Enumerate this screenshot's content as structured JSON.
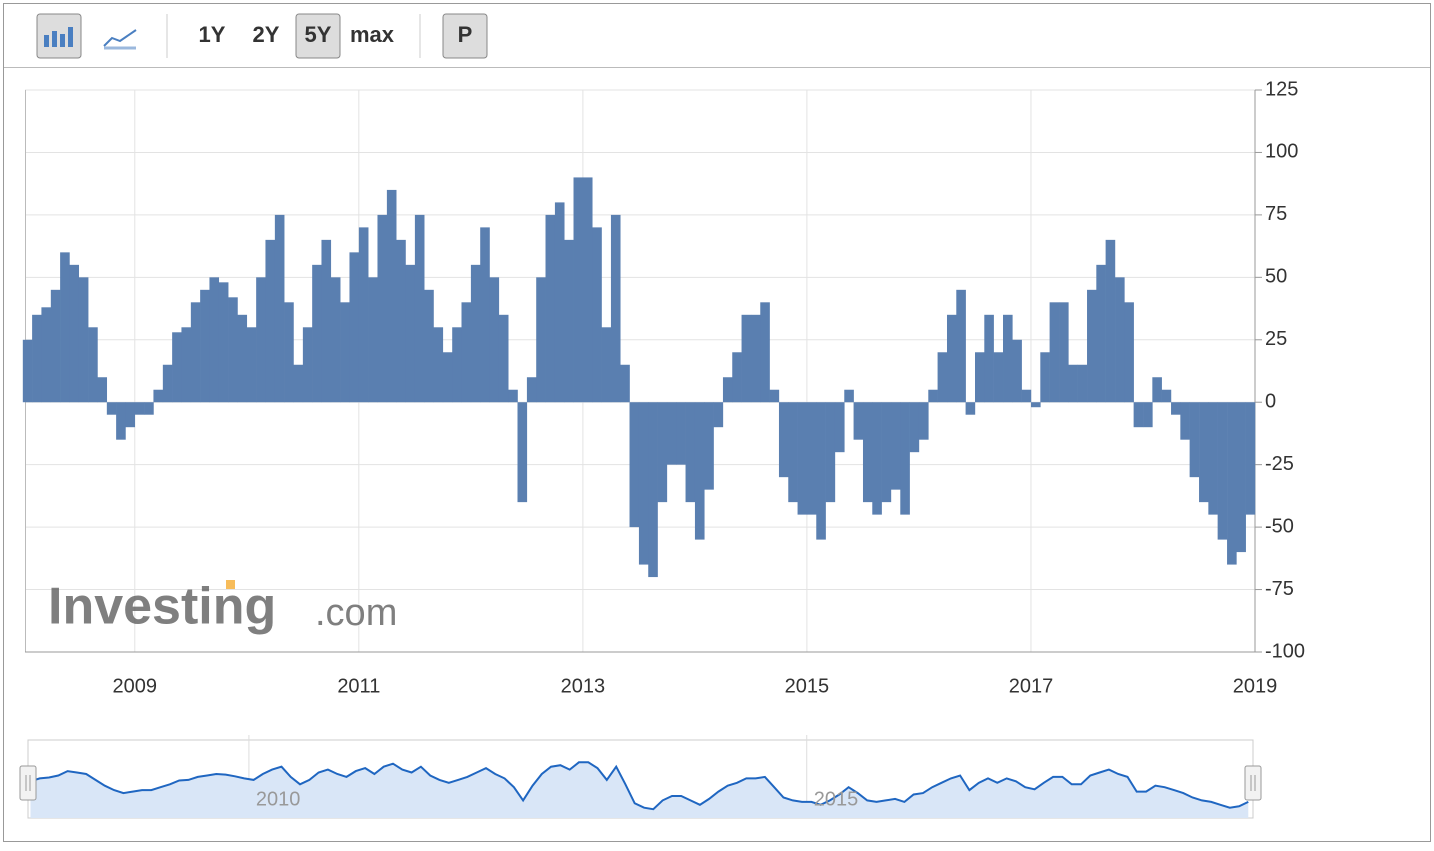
{
  "toolbar": {
    "ranges": [
      "1Y",
      "2Y",
      "5Y",
      "max"
    ],
    "active_range": 2,
    "print": "P"
  },
  "watermark": {
    "brand": "Investing",
    "suffix": ".com"
  },
  "chart_data": {
    "type": "bar",
    "color": "#5a7fb0",
    "grid": true,
    "x": [
      2008.042,
      2008.125,
      2008.208,
      2008.292,
      2008.375,
      2008.458,
      2008.542,
      2008.625,
      2008.708,
      2008.792,
      2008.875,
      2008.958,
      2009.042,
      2009.125,
      2009.208,
      2009.292,
      2009.375,
      2009.458,
      2009.542,
      2009.625,
      2009.708,
      2009.792,
      2009.875,
      2009.958,
      2010.042,
      2010.125,
      2010.208,
      2010.292,
      2010.375,
      2010.458,
      2010.542,
      2010.625,
      2010.708,
      2010.792,
      2010.875,
      2010.958,
      2011.042,
      2011.125,
      2011.208,
      2011.292,
      2011.375,
      2011.458,
      2011.542,
      2011.625,
      2011.708,
      2011.792,
      2011.875,
      2011.958,
      2012.042,
      2012.125,
      2012.208,
      2012.292,
      2012.375,
      2012.458,
      2012.542,
      2012.625,
      2012.708,
      2012.792,
      2012.875,
      2012.958,
      2013.042,
      2013.125,
      2013.208,
      2013.292,
      2013.375,
      2013.458,
      2013.542,
      2013.625,
      2013.708,
      2013.792,
      2013.875,
      2013.958,
      2014.042,
      2014.125,
      2014.208,
      2014.292,
      2014.375,
      2014.458,
      2014.542,
      2014.625,
      2014.708,
      2014.792,
      2014.875,
      2014.958,
      2015.042,
      2015.125,
      2015.208,
      2015.292,
      2015.375,
      2015.458,
      2015.542,
      2015.625,
      2015.708,
      2015.792,
      2015.875,
      2015.958,
      2016.042,
      2016.125,
      2016.208,
      2016.292,
      2016.375,
      2016.458,
      2016.542,
      2016.625,
      2016.708,
      2016.792,
      2016.875,
      2016.958,
      2017.042,
      2017.125,
      2017.208,
      2017.292,
      2017.375,
      2017.458,
      2017.542,
      2017.625,
      2017.708,
      2017.792,
      2017.875,
      2017.958,
      2018.042,
      2018.125,
      2018.208,
      2018.292,
      2018.375,
      2018.458,
      2018.542,
      2018.625,
      2018.708,
      2018.792,
      2018.875,
      2018.958
    ],
    "values": [
      25,
      35,
      38,
      45,
      60,
      55,
      50,
      30,
      10,
      -5,
      -15,
      -10,
      -5,
      -5,
      5,
      15,
      28,
      30,
      40,
      45,
      50,
      48,
      42,
      35,
      30,
      50,
      65,
      75,
      40,
      15,
      30,
      55,
      65,
      50,
      40,
      60,
      70,
      50,
      75,
      85,
      65,
      55,
      75,
      45,
      30,
      20,
      30,
      40,
      55,
      70,
      50,
      35,
      5,
      -40,
      10,
      50,
      75,
      80,
      65,
      90,
      90,
      70,
      30,
      75,
      15,
      -50,
      -65,
      -70,
      -40,
      -25,
      -25,
      -40,
      -55,
      -35,
      -10,
      10,
      20,
      35,
      35,
      40,
      5,
      -30,
      -40,
      -45,
      -45,
      -55,
      -40,
      -20,
      5,
      -15,
      -40,
      -45,
      -40,
      -35,
      -45,
      -20,
      -15,
      5,
      20,
      35,
      45,
      -5,
      20,
      35,
      20,
      35,
      25,
      5,
      -2,
      20,
      40,
      40,
      15,
      15,
      45,
      55,
      65,
      50,
      40,
      -10,
      -10,
      10,
      5,
      -5,
      -15,
      -30,
      -40,
      -45,
      -55,
      -65,
      -60,
      -45
    ],
    "xlim": [
      2008.02,
      2019
    ],
    "xticks": [
      2009,
      2011,
      2013,
      2015,
      2017,
      2019
    ],
    "ylim": [
      -100,
      125
    ],
    "yticks": [
      -100,
      -75,
      -50,
      -25,
      0,
      25,
      50,
      75,
      100,
      125
    ],
    "navigator": {
      "xticks": [
        2010,
        2015
      ],
      "color": "#1f66c1",
      "fill": "#d9e6f7"
    }
  }
}
